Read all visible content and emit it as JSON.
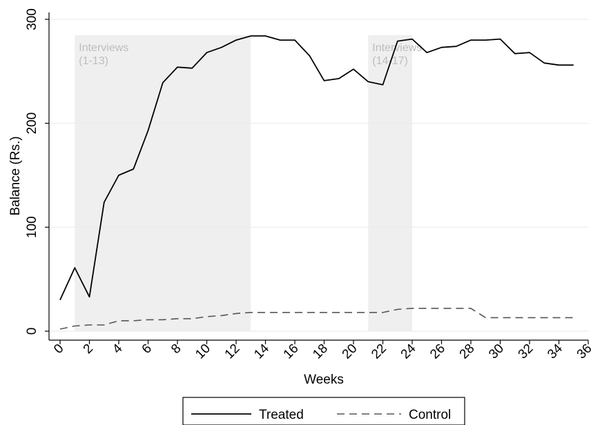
{
  "chart_data": {
    "type": "line",
    "xlabel": "Weeks",
    "ylabel": "Balance (Rs.)",
    "xlim": [
      0,
      36
    ],
    "ylim": [
      0,
      300
    ],
    "xticks": [
      0,
      2,
      4,
      6,
      8,
      10,
      12,
      14,
      16,
      18,
      20,
      22,
      24,
      26,
      28,
      30,
      32,
      34,
      36
    ],
    "yticks": [
      0,
      100,
      200,
      300
    ],
    "grid": true,
    "legend_position": "bottom",
    "bands": [
      {
        "x0": 1,
        "x1": 13,
        "label_line1": "Interviews",
        "label_line2": "(1-13)"
      },
      {
        "x0": 21,
        "x1": 24,
        "label_line1": "Interviews",
        "label_line2": "(14-17)"
      }
    ],
    "series": [
      {
        "name": "Treated",
        "style": "solid",
        "color": "#000000",
        "x": [
          0,
          1,
          2,
          3,
          4,
          5,
          6,
          7,
          8,
          9,
          10,
          11,
          12,
          13,
          14,
          15,
          16,
          17,
          18,
          19,
          20,
          21,
          22,
          23,
          24,
          25,
          26,
          27,
          28,
          29,
          30,
          31,
          32,
          33,
          34,
          35
        ],
        "y": [
          30,
          61,
          33,
          124,
          150,
          156,
          193,
          239,
          254,
          253,
          268,
          273,
          280,
          284,
          284,
          280,
          280,
          265,
          241,
          243,
          252,
          240,
          237,
          279,
          281,
          268,
          273,
          274,
          280,
          280,
          281,
          267,
          268,
          258,
          256,
          256
        ]
      },
      {
        "name": "Control",
        "style": "dashed",
        "color": "#555555",
        "x": [
          0,
          1,
          2,
          3,
          4,
          5,
          6,
          7,
          8,
          9,
          10,
          11,
          12,
          13,
          14,
          15,
          16,
          17,
          18,
          19,
          20,
          21,
          22,
          23,
          24,
          25,
          26,
          27,
          28,
          29,
          30,
          31,
          32,
          33,
          34,
          35
        ],
        "y": [
          2,
          5,
          6,
          6,
          10,
          10,
          11,
          11,
          12,
          12,
          14,
          15,
          17,
          18,
          18,
          18,
          18,
          18,
          18,
          18,
          18,
          18,
          18,
          21,
          22,
          22,
          22,
          22,
          22,
          13,
          13,
          13,
          13,
          13,
          13,
          13
        ]
      }
    ]
  }
}
